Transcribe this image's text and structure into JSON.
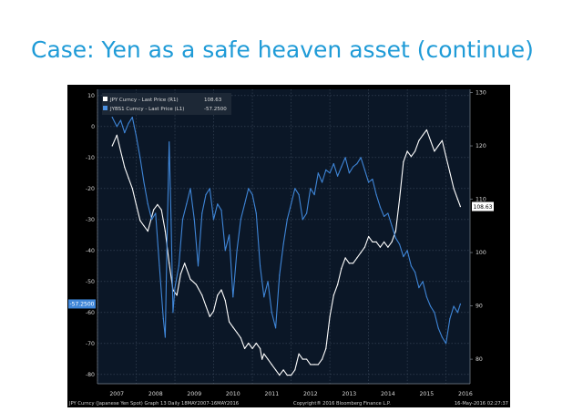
{
  "slide": {
    "title": "Case: Yen as a safe heaven asset (continue)"
  },
  "chart_data": {
    "type": "line",
    "title": "",
    "xlabel": "",
    "x_tick_labels": [
      "2007",
      "2008",
      "2009",
      "2010",
      "2011",
      "2012",
      "2013",
      "2014",
      "2015",
      "2016"
    ],
    "left_axis": {
      "ylim": [
        -83,
        12
      ],
      "ticks": [
        10,
        0,
        -10,
        -20,
        -30,
        -40,
        -50,
        -60,
        -70,
        -80
      ],
      "tick_labels": [
        "10",
        "0",
        "-10",
        "-20",
        "-30",
        "-40",
        "-50",
        "-60",
        "-70",
        "-80"
      ]
    },
    "right_axis": {
      "ylim": [
        75.4,
        130.6
      ],
      "ticks": [
        130,
        120,
        110,
        100,
        90,
        80
      ],
      "tick_labels": [
        "130",
        "120",
        "110",
        "100",
        "90",
        "80"
      ]
    },
    "grid": true,
    "legend_position": "top-left",
    "legend": [
      {
        "text": "JPY Curncy - Last Price (R1)",
        "value": "108.63",
        "color": "#ffffff"
      },
      {
        "text": "JYBS1 Curncy - Last Price (L1)",
        "value": "-57.2500",
        "color": "#4a8fe0"
      }
    ],
    "last_value_tags": {
      "right": "108.63",
      "left": "-57.2500"
    },
    "footer_left": "JPY Curncy (Japanese Yen Spot) Graph 13  Daily 18MAY2007-16MAY2016",
    "footer_center": "Copyright® 2016 Bloomberg Finance L.P.",
    "footer_right": "16-May-2016 02:27:37",
    "series": [
      {
        "name": "JPY Curncy - Last Price (R1)",
        "axis": "right",
        "color": "#ffffff",
        "x": [
          2007.38,
          2007.5,
          2007.6,
          2007.7,
          2007.8,
          2007.9,
          2008.0,
          2008.1,
          2008.2,
          2008.3,
          2008.45,
          2008.55,
          2008.65,
          2008.75,
          2008.85,
          2008.95,
          2009.05,
          2009.15,
          2009.25,
          2009.4,
          2009.55,
          2009.7,
          2009.8,
          2009.9,
          2010.0,
          2010.1,
          2010.2,
          2010.3,
          2010.4,
          2010.5,
          2010.6,
          2010.7,
          2010.8,
          2010.9,
          2011.0,
          2011.1,
          2011.2,
          2011.25,
          2011.3,
          2011.4,
          2011.5,
          2011.6,
          2011.7,
          2011.8,
          2011.9,
          2012.0,
          2012.1,
          2012.2,
          2012.3,
          2012.4,
          2012.5,
          2012.6,
          2012.7,
          2012.8,
          2012.9,
          2013.0,
          2013.1,
          2013.2,
          2013.3,
          2013.4,
          2013.5,
          2013.6,
          2013.7,
          2013.8,
          2013.9,
          2014.0,
          2014.1,
          2014.2,
          2014.3,
          2014.4,
          2014.5,
          2014.6,
          2014.7,
          2014.8,
          2014.9,
          2015.0,
          2015.1,
          2015.2,
          2015.3,
          2015.4,
          2015.5,
          2015.6,
          2015.7,
          2015.8,
          2015.9,
          2016.0,
          2016.1,
          2016.2,
          2016.3,
          2016.37
        ],
        "values": [
          120,
          122,
          119,
          116,
          114,
          112,
          109,
          106,
          105,
          104,
          108,
          109,
          108,
          104,
          98,
          93,
          92,
          96,
          98,
          95,
          94,
          92,
          90,
          88,
          89,
          92,
          93,
          91,
          87,
          86,
          85,
          84,
          82,
          83,
          82,
          83,
          82,
          80,
          81,
          80,
          79,
          78,
          77,
          78,
          77,
          77,
          78,
          81,
          80,
          80,
          79,
          79,
          79,
          80,
          82,
          88,
          92,
          94,
          97,
          99,
          98,
          98,
          99,
          100,
          101,
          103,
          102,
          102,
          101,
          102,
          101,
          102,
          104,
          110,
          117,
          119,
          118,
          119,
          121,
          122,
          123,
          121,
          119,
          120,
          121,
          118,
          115,
          112,
          110,
          108.63
        ]
      },
      {
        "name": "JYBS1 Curncy - Last Price (L1)",
        "axis": "left",
        "color": "#3f86d8",
        "x": [
          2007.38,
          2007.5,
          2007.6,
          2007.7,
          2007.8,
          2007.9,
          2008.0,
          2008.1,
          2008.2,
          2008.3,
          2008.4,
          2008.5,
          2008.6,
          2008.7,
          2008.75,
          2008.8,
          2008.85,
          2008.9,
          2008.95,
          2009.0,
          2009.1,
          2009.2,
          2009.3,
          2009.4,
          2009.5,
          2009.6,
          2009.7,
          2009.8,
          2009.9,
          2010.0,
          2010.1,
          2010.2,
          2010.3,
          2010.4,
          2010.5,
          2010.6,
          2010.7,
          2010.8,
          2010.9,
          2011.0,
          2011.1,
          2011.2,
          2011.3,
          2011.4,
          2011.5,
          2011.6,
          2011.7,
          2011.8,
          2011.9,
          2012.0,
          2012.1,
          2012.2,
          2012.3,
          2012.4,
          2012.5,
          2012.6,
          2012.7,
          2012.8,
          2012.9,
          2013.0,
          2013.1,
          2013.2,
          2013.3,
          2013.4,
          2013.5,
          2013.6,
          2013.7,
          2013.8,
          2013.9,
          2014.0,
          2014.1,
          2014.2,
          2014.3,
          2014.4,
          2014.5,
          2014.6,
          2014.7,
          2014.8,
          2014.9,
          2015.0,
          2015.1,
          2015.2,
          2015.3,
          2015.4,
          2015.5,
          2015.6,
          2015.7,
          2015.8,
          2015.9,
          2016.0,
          2016.1,
          2016.2,
          2016.3,
          2016.37
        ],
        "values": [
          3,
          0,
          2,
          -2,
          1,
          3,
          -3,
          -10,
          -18,
          -25,
          -30,
          -28,
          -45,
          -62,
          -68,
          -35,
          -5,
          -30,
          -60,
          -52,
          -45,
          -30,
          -25,
          -20,
          -30,
          -45,
          -28,
          -22,
          -20,
          -30,
          -25,
          -27,
          -40,
          -35,
          -55,
          -40,
          -30,
          -25,
          -20,
          -22,
          -28,
          -45,
          -55,
          -50,
          -60,
          -65,
          -48,
          -38,
          -30,
          -25,
          -20,
          -22,
          -30,
          -28,
          -20,
          -22,
          -15,
          -18,
          -14,
          -15,
          -12,
          -16,
          -13,
          -10,
          -15,
          -13,
          -12,
          -10,
          -14,
          -18,
          -17,
          -22,
          -26,
          -29,
          -28,
          -32,
          -36,
          -38,
          -42,
          -40,
          -45,
          -47,
          -52,
          -50,
          -55,
          -58,
          -60,
          -65,
          -68,
          -70,
          -62,
          -58,
          -60,
          -57.25
        ]
      }
    ]
  }
}
